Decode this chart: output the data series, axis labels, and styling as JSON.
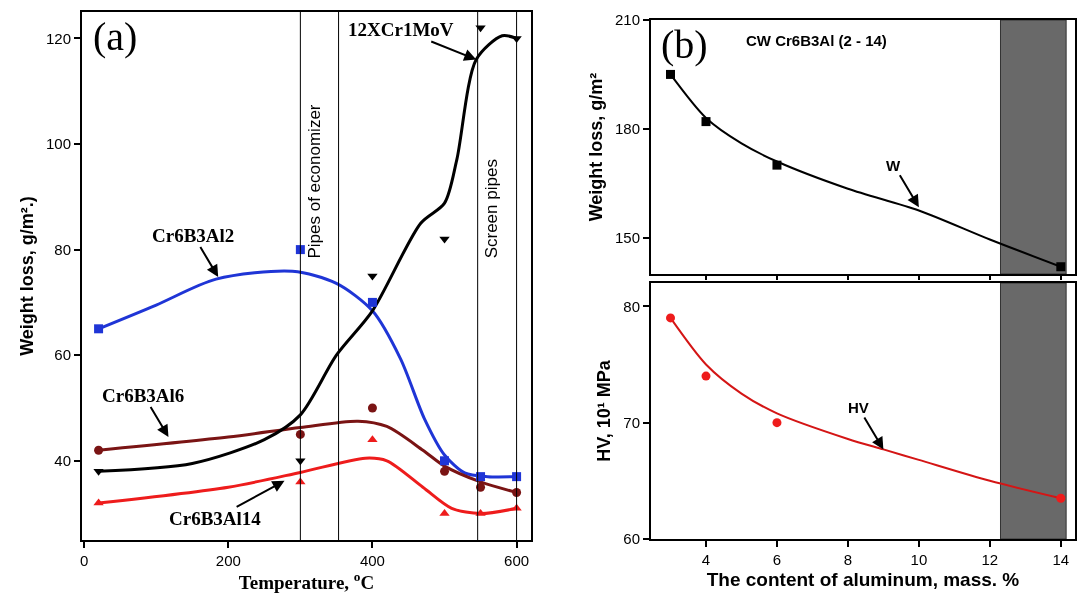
{
  "chart_data": [
    {
      "type": "scatter",
      "title": "(a)",
      "xlabel": "Temperature, $^{o}$C",
      "ylabel": "Weight loss, g/m².)",
      "xlim": [
        -3,
        620
      ],
      "xticks": [
        0,
        200,
        400,
        600
      ],
      "ylim": [
        25,
        125
      ],
      "yticks": [
        40,
        60,
        80,
        100,
        120
      ],
      "grid": false,
      "series": [
        {
          "type": "line",
          "color": "#1f35d6",
          "marker": "none",
          "x": [
            20,
            100,
            183,
            289,
            350,
            400,
            439,
            472,
            500,
            528,
            560,
            600
          ],
          "values": [
            65,
            69.5,
            74.4,
            75.9,
            73.6,
            68.4,
            59.3,
            48,
            41.1,
            37.7,
            37,
            37
          ]
        },
        {
          "type": "line",
          "color": "#7a1414",
          "marker": "none",
          "x": [
            20,
            200,
            300,
            380,
            420,
            470,
            500,
            550,
            600
          ],
          "values": [
            42,
            44.5,
            46.3,
            47.5,
            46.5,
            42,
            39,
            36,
            34
          ]
        },
        {
          "type": "line",
          "color": "#ee1c1c",
          "marker": "none",
          "x": [
            20,
            200,
            300,
            390,
            420,
            470,
            510,
            550,
            600
          ],
          "values": [
            32,
            35,
            37.8,
            40.5,
            40,
            35,
            31,
            30,
            31
          ]
        },
        {
          "type": "line",
          "color": "#000000",
          "marker": "none",
          "x": [
            20,
            150,
            250,
            300,
            350,
            400,
            467,
            500,
            517,
            544,
            580,
            600
          ],
          "values": [
            38,
            39.5,
            44,
            48.7,
            60,
            68.4,
            85,
            88.8,
            97,
            116,
            120.5,
            120
          ]
        },
        {
          "color": "#1f35d6",
          "marker": "square",
          "x": [
            20,
            300,
            400,
            500,
            550,
            600
          ],
          "values": [
            65,
            80,
            70,
            40,
            37,
            37
          ]
        },
        {
          "color": "#7a1414",
          "marker": "circle",
          "x": [
            20,
            300,
            400,
            500,
            550,
            600
          ],
          "values": [
            42,
            45,
            50,
            38,
            35,
            34
          ]
        },
        {
          "color": "#ee1c1c",
          "marker": "triangle",
          "x": [
            20,
            300,
            400,
            500,
            550,
            600
          ],
          "values": [
            32,
            36,
            44,
            30,
            30,
            31
          ]
        },
        {
          "color": "#000000",
          "marker": "triangle-down",
          "x": [
            20,
            300,
            400,
            500,
            550,
            600
          ],
          "values": [
            38,
            40,
            75,
            82,
            122,
            120
          ]
        }
      ],
      "ref_lines": [
        {
          "axis": "x",
          "value": 300,
          "label": "Pipes of economizer"
        },
        {
          "axis": "x",
          "value": 353
        },
        {
          "axis": "x",
          "value": 546,
          "label": "Screen pipes"
        },
        {
          "axis": "x",
          "value": 600
        }
      ],
      "annotations": [
        {
          "text": "Cr6B3Al2",
          "x": 186,
          "y": 74.8
        },
        {
          "text": "Cr6B3Al6",
          "x": 117,
          "y": 44.5
        },
        {
          "text": "Cr6B3Al14",
          "x": 278,
          "y": 36.2
        },
        {
          "text": "12XCr1MoV",
          "x": 544,
          "y": 116
        }
      ]
    },
    {
      "type": "scatter",
      "title": "(b)",
      "subtitle": "CW Cr6B3Al (2 - 14)",
      "ylabel": "Weight loss, g/m²",
      "xlim": [
        2.45,
        14.4
      ],
      "xticks": [
        4,
        6,
        8,
        10,
        12,
        14
      ],
      "ylim": [
        140,
        210
      ],
      "yticks": [
        150,
        180,
        210
      ],
      "tick_labels": "y",
      "grid": false,
      "series": [
        {
          "type": "line",
          "color": "#000000",
          "marker": "none",
          "x": [
            3,
            4,
            5,
            6,
            8,
            10,
            12,
            14
          ],
          "values": [
            195,
            183,
            176,
            171,
            163.5,
            157.5,
            149.5,
            142
          ]
        },
        {
          "color": "#000000",
          "marker": "square",
          "x": [
            3,
            4,
            6,
            14
          ],
          "values": [
            195,
            182,
            170,
            142
          ]
        }
      ],
      "bands": [
        {
          "axis": "x",
          "from": 12.3,
          "to": 14.15,
          "color": "#444444"
        }
      ],
      "annotations": [
        {
          "text": "W",
          "x": 10,
          "y": 158.4
        }
      ]
    },
    {
      "type": "scatter",
      "xlabel": "The content of aluminum, mass. %",
      "ylabel": "HV, 10¹ MPa",
      "xlim": [
        2.45,
        14.4
      ],
      "xticks": [
        4,
        6,
        8,
        10,
        12,
        14
      ],
      "ylim": [
        60,
        82
      ],
      "yticks": [
        60,
        70,
        80
      ],
      "grid": false,
      "series": [
        {
          "type": "line",
          "color": "#d41515",
          "marker": "none",
          "x": [
            3,
            4,
            5,
            6,
            8,
            9,
            10,
            12,
            14
          ],
          "values": [
            79,
            75,
            72.5,
            70.8,
            68.6,
            67.7,
            66.8,
            65,
            63.5
          ]
        },
        {
          "color": "#ee1c1c",
          "marker": "circle",
          "x": [
            3,
            4,
            6,
            14
          ],
          "values": [
            79,
            74,
            70,
            63.5
          ]
        }
      ],
      "bands": [
        {
          "axis": "x",
          "from": 12.3,
          "to": 14.15,
          "color": "#444444"
        }
      ],
      "annotations": [
        {
          "text": "HV",
          "x": 9,
          "y": 67.7
        }
      ]
    }
  ]
}
